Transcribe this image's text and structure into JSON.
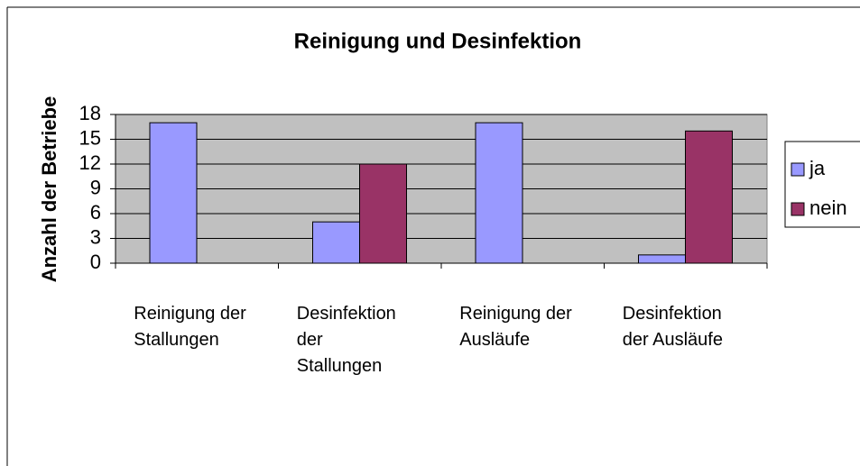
{
  "chart_data": {
    "type": "bar",
    "title": "Reinigung und Desinfektion",
    "y_label": "Anzahl der Betriebe",
    "categories": [
      "Reinigung der Stallungen",
      "Desinfektion der Stallungen",
      "Reinigung der Ausläufe",
      "Desinfektion der Ausläufe"
    ],
    "series": [
      {
        "name": "ja",
        "color": "#9999ff",
        "values": [
          17,
          5,
          17,
          1
        ]
      },
      {
        "name": "nein",
        "color": "#993366",
        "values": [
          0,
          12,
          0,
          16
        ]
      }
    ],
    "ylim": [
      0,
      18
    ],
    "yticks": [
      0,
      3,
      6,
      9,
      12,
      15,
      18
    ],
    "grid": true,
    "legend": "right",
    "plot_background": "#c0c0c0"
  }
}
